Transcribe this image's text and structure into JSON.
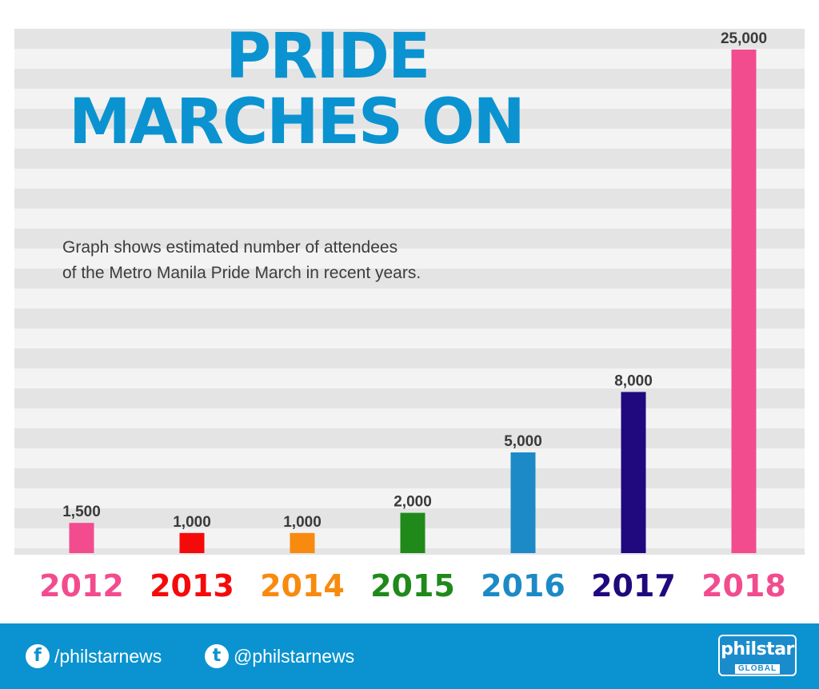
{
  "title_lines": [
    "PRIDE",
    "MARCHES ON"
  ],
  "subtitle_lines": [
    "Graph shows estimated number of attendees",
    "of the Metro Manila Pride March in recent years."
  ],
  "chart_data": {
    "type": "bar",
    "title": "PRIDE MARCHES ON",
    "categories": [
      "2012",
      "2013",
      "2014",
      "2015",
      "2016",
      "2017",
      "2018"
    ],
    "values": [
      1500,
      1000,
      1000,
      2000,
      5000,
      8000,
      25000
    ],
    "value_labels": [
      "1,500",
      "1,000",
      "1,000",
      "2,000",
      "5,000",
      "8,000",
      "25,000"
    ],
    "colors": [
      "#f24c8f",
      "#f50a0a",
      "#f78a0f",
      "#1f8a1a",
      "#1c8ac6",
      "#20087e",
      "#f24c8f"
    ],
    "xlabel": "",
    "ylabel": "",
    "ylim": [
      0,
      25000
    ],
    "grid": false,
    "legend": "none"
  },
  "footer": {
    "facebook_icon": "f",
    "facebook_handle": "/philstarnews",
    "twitter_icon": "t",
    "twitter_handle": "@philstarnews",
    "logo_main": "philstar",
    "logo_sub": "GLOBAL",
    "background_color": "#0a93d0"
  }
}
